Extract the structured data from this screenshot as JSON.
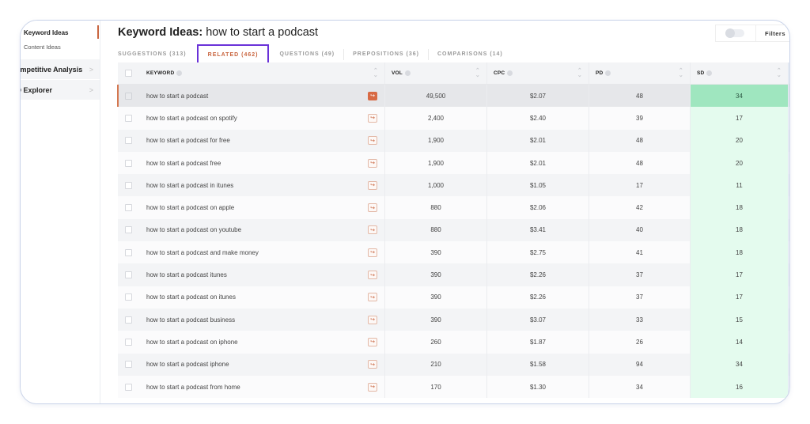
{
  "sidebar": {
    "sub_items": [
      {
        "label": "Keyword Ideas",
        "active": true
      },
      {
        "label": "Content Ideas",
        "active": false
      }
    ],
    "items": [
      {
        "label": "ompetitive Analysis",
        "chevron": ">"
      },
      {
        "label": "O Explorer",
        "chevron": ">"
      }
    ]
  },
  "header": {
    "title_bold": "Keyword Ideas:",
    "title_query": "how to start a podcast",
    "filters_label": "Filters"
  },
  "tabs": [
    {
      "label": "SUGGESTIONS (313)",
      "active": false
    },
    {
      "label": "RELATED (462)",
      "active": true
    },
    {
      "label": "QUESTIONS (49)",
      "active": false
    },
    {
      "label": "PREPOSITIONS (36)",
      "active": false
    },
    {
      "label": "COMPARISONS (14)",
      "active": false
    }
  ],
  "table": {
    "columns": {
      "keyword": "KEYWORD",
      "vol": "VOL",
      "cpc": "CPC",
      "pd": "PD",
      "sd": "SD"
    },
    "colors": {
      "accent": "#d86a44",
      "sd_bg": "#e4fbee",
      "sd_selected_bg": "#9fe6bf",
      "tab_highlight": "#6a32d8"
    },
    "rows": [
      {
        "keyword": "how to start a podcast",
        "vol": "49,500",
        "cpc": "$2.07",
        "pd": "48",
        "sd": "34"
      },
      {
        "keyword": "how to start a podcast on spotify",
        "vol": "2,400",
        "cpc": "$2.40",
        "pd": "39",
        "sd": "17"
      },
      {
        "keyword": "how to start a podcast for free",
        "vol": "1,900",
        "cpc": "$2.01",
        "pd": "48",
        "sd": "20"
      },
      {
        "keyword": "how to start a podcast free",
        "vol": "1,900",
        "cpc": "$2.01",
        "pd": "48",
        "sd": "20"
      },
      {
        "keyword": "how to start a podcast in itunes",
        "vol": "1,000",
        "cpc": "$1.05",
        "pd": "17",
        "sd": "11"
      },
      {
        "keyword": "how to start a podcast on apple",
        "vol": "880",
        "cpc": "$2.06",
        "pd": "42",
        "sd": "18"
      },
      {
        "keyword": "how to start a podcast on youtube",
        "vol": "880",
        "cpc": "$3.41",
        "pd": "40",
        "sd": "18"
      },
      {
        "keyword": "how to start a podcast and make money",
        "vol": "390",
        "cpc": "$2.75",
        "pd": "41",
        "sd": "18"
      },
      {
        "keyword": "how to start a podcast itunes",
        "vol": "390",
        "cpc": "$2.26",
        "pd": "37",
        "sd": "17"
      },
      {
        "keyword": "how to start a podcast on itunes",
        "vol": "390",
        "cpc": "$2.26",
        "pd": "37",
        "sd": "17"
      },
      {
        "keyword": "how to start a podcast business",
        "vol": "390",
        "cpc": "$3.07",
        "pd": "33",
        "sd": "15"
      },
      {
        "keyword": "how to start a podcast on iphone",
        "vol": "260",
        "cpc": "$1.87",
        "pd": "26",
        "sd": "14"
      },
      {
        "keyword": "how to start a podcast iphone",
        "vol": "210",
        "cpc": "$1.58",
        "pd": "94",
        "sd": "34"
      },
      {
        "keyword": "how to start a podcast from home",
        "vol": "170",
        "cpc": "$1.30",
        "pd": "34",
        "sd": "16"
      }
    ]
  }
}
